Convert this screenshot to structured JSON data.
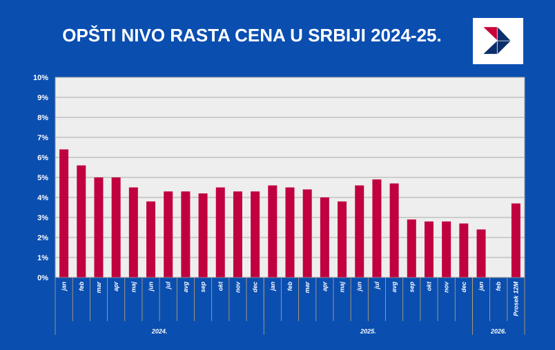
{
  "title": "OPŠTI NIVO RASTA CENA U SRBIJI 2024-25.",
  "colors": {
    "background": "#0a4eb0",
    "plot_bg": "#eeeeee",
    "bar": "#c0003f",
    "grid": "#aaaaaa",
    "logo_red": "#c8003c",
    "logo_navy": "#0b2f6b"
  },
  "chart_data": {
    "type": "bar",
    "title": "OPŠTI NIVO RASTA CENA U SRBIJI 2024-25.",
    "categories": [
      "jan",
      "feb",
      "mar",
      "apr",
      "maj",
      "jun",
      "jul",
      "avg",
      "sep",
      "okt",
      "nov",
      "dec",
      "jan",
      "feb",
      "mar",
      "apr",
      "maj",
      "jun",
      "jul",
      "avg",
      "sep",
      "okt",
      "nov",
      "dec",
      "jan",
      "feb",
      "Prosek 12M"
    ],
    "groups": [
      {
        "label": "2024.",
        "span": 12
      },
      {
        "label": "2025.",
        "span": 12
      },
      {
        "label": "2026.",
        "span": 3
      }
    ],
    "values": [
      6.4,
      5.6,
      5.0,
      5.0,
      4.5,
      3.8,
      4.3,
      4.3,
      4.2,
      4.5,
      4.3,
      4.3,
      4.6,
      4.5,
      4.4,
      4.0,
      3.8,
      4.6,
      4.9,
      4.7,
      2.9,
      2.8,
      2.8,
      2.7,
      2.4,
      null,
      3.7
    ],
    "ylim": [
      0,
      10
    ],
    "yticks": [
      "0%",
      "1%",
      "2%",
      "3%",
      "4%",
      "5%",
      "6%",
      "7%",
      "8%",
      "9%",
      "10%"
    ],
    "grid": true,
    "legend": "none"
  }
}
